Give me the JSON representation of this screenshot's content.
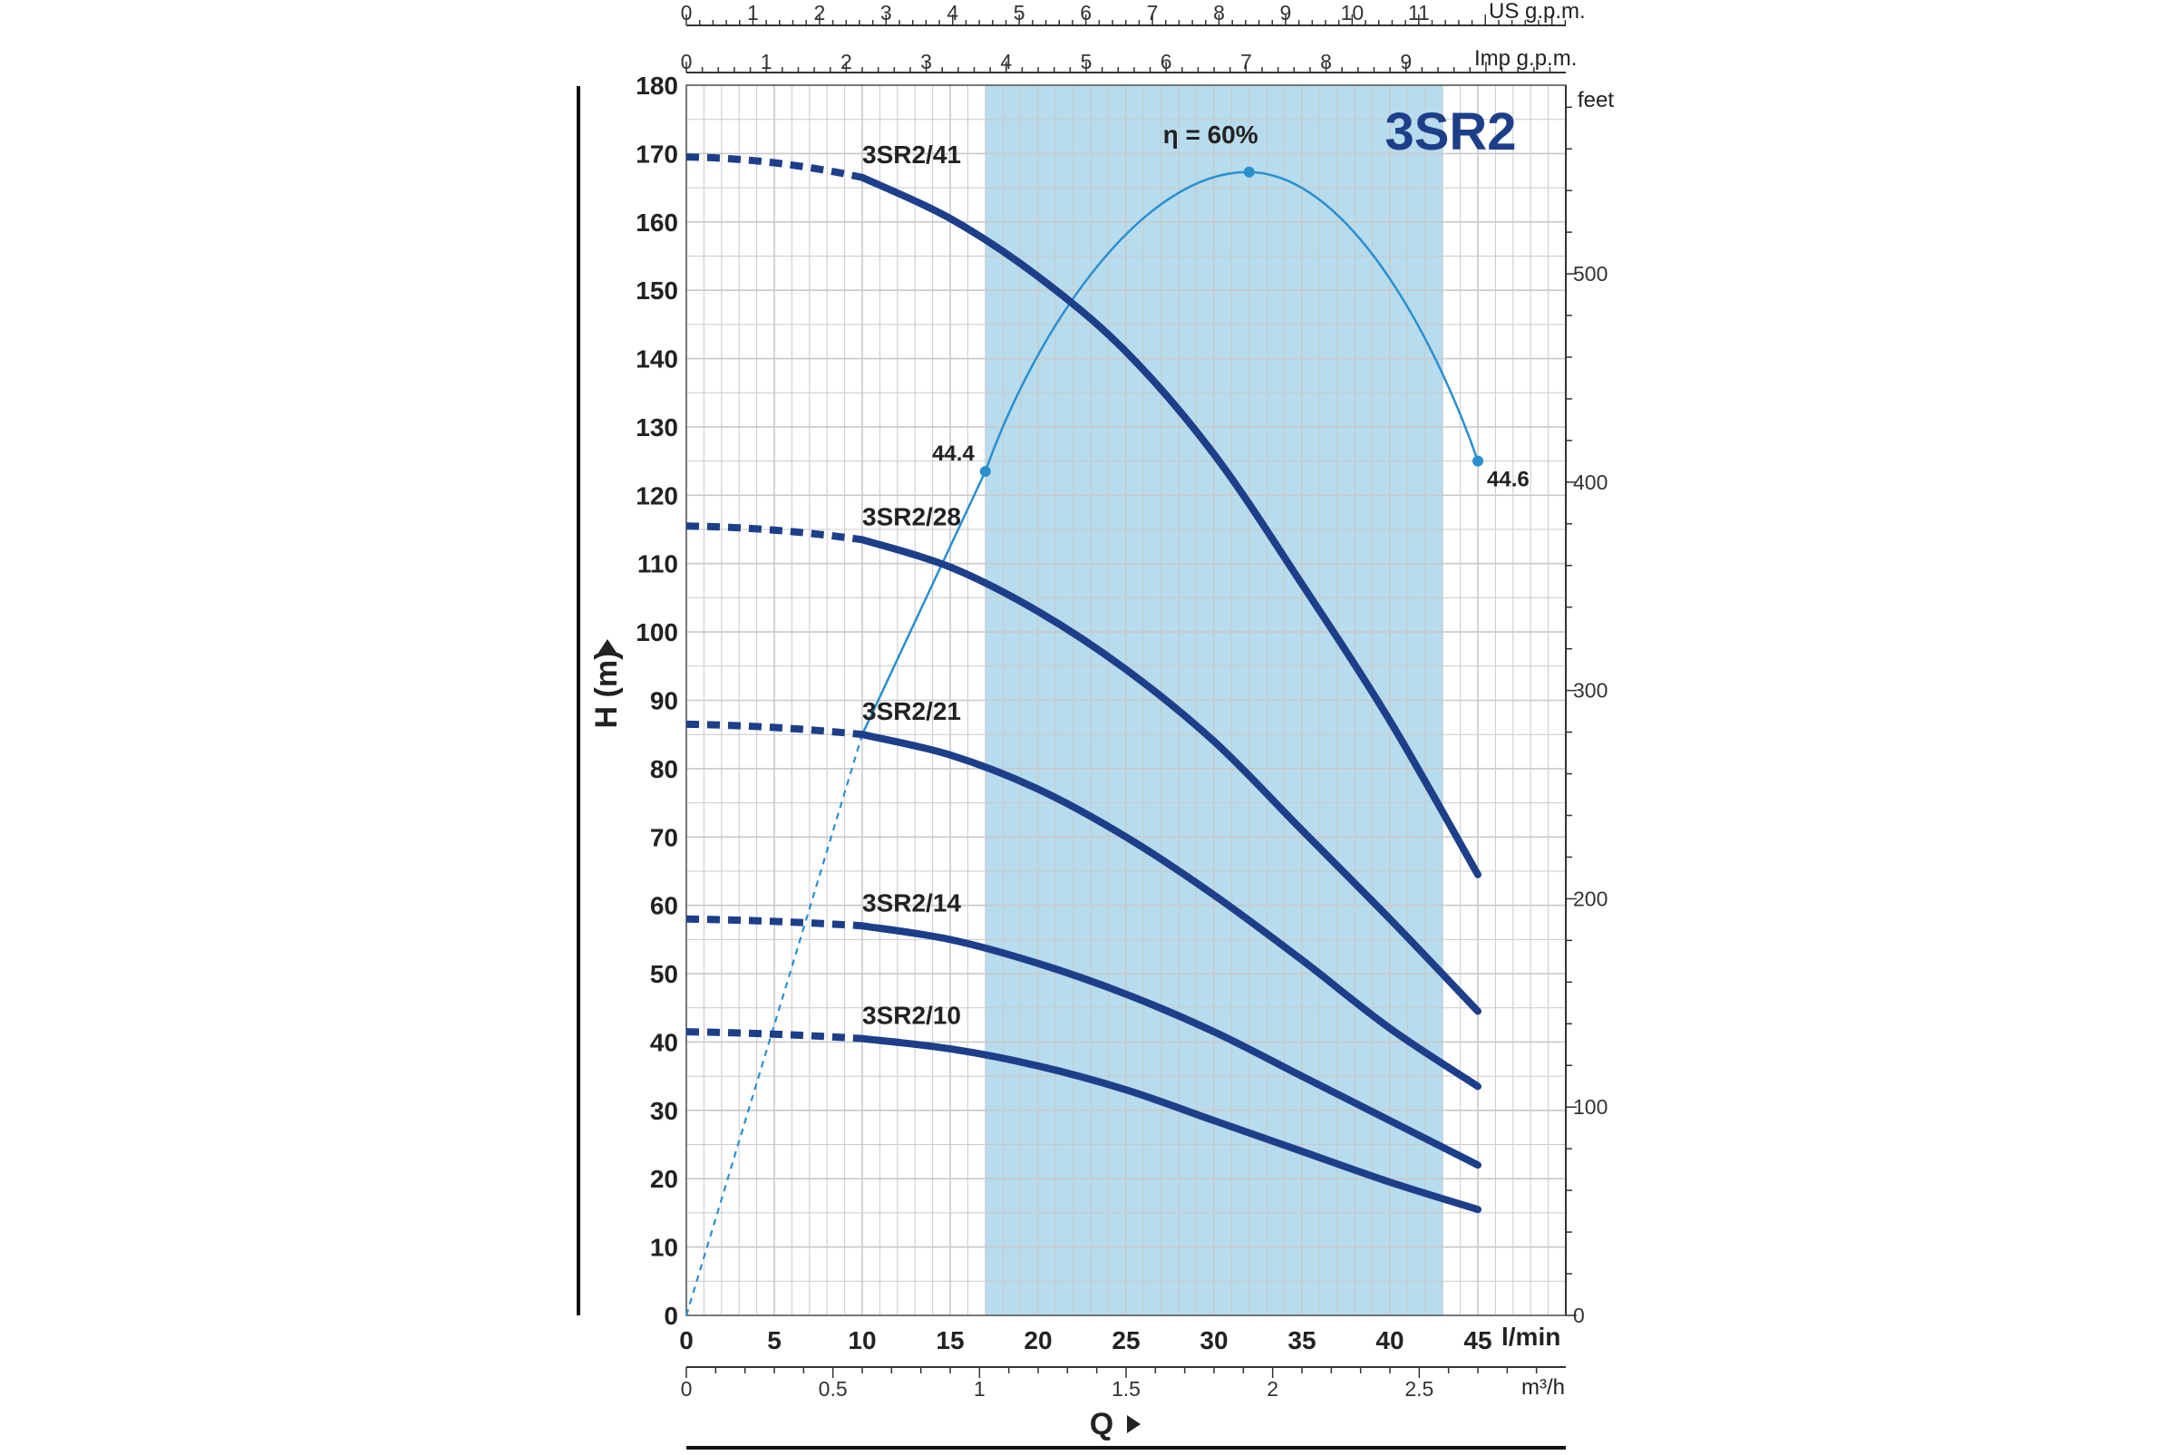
{
  "chart_data": {
    "type": "line",
    "title": "3SR2",
    "xlabel": "Q",
    "ylabel": "H  (m)",
    "y_right_unit": "feet",
    "x_unit_main": "l/min",
    "x_unit_m3h": "m³/h",
    "x_unit_imp": "Imp g.p.m.",
    "x_unit_us": "US g.p.m.",
    "xlim": [
      0,
      50
    ],
    "ylim": [
      0,
      180
    ],
    "x_ticks": [
      "0",
      "5",
      "10",
      "15",
      "20",
      "25",
      "30",
      "35",
      "40",
      "45"
    ],
    "y_ticks": [
      "0",
      "10",
      "20",
      "30",
      "40",
      "50",
      "60",
      "70",
      "80",
      "90",
      "100",
      "110",
      "120",
      "130",
      "140",
      "150",
      "160",
      "170",
      "180"
    ],
    "feet_ticks": [
      "0",
      "100",
      "200",
      "300",
      "400",
      "500"
    ],
    "m3h_ticks": [
      "0",
      "0.5",
      "1",
      "1.5",
      "2",
      "2.5"
    ],
    "imp_ticks": [
      "0",
      "1",
      "2",
      "3",
      "4",
      "5",
      "6",
      "7",
      "8",
      "9"
    ],
    "us_ticks": [
      "0",
      "1",
      "2",
      "3",
      "4",
      "5",
      "6",
      "7",
      "8",
      "9",
      "10",
      "11"
    ],
    "operating_range": [
      17,
      43
    ],
    "series": [
      {
        "name": "3SR2/41",
        "h0": 169.5,
        "start": [
          10,
          166.5
        ],
        "points": [
          [
            10,
            166.5
          ],
          [
            15,
            160.5
          ],
          [
            20,
            152
          ],
          [
            25,
            141
          ],
          [
            30,
            126
          ],
          [
            35,
            107
          ],
          [
            40,
            87
          ],
          [
            45,
            64.5
          ]
        ]
      },
      {
        "name": "3SR2/28",
        "h0": 115.5,
        "start": [
          10,
          113.5
        ],
        "points": [
          [
            10,
            113.5
          ],
          [
            15,
            109.5
          ],
          [
            20,
            103
          ],
          [
            25,
            94.5
          ],
          [
            30,
            84
          ],
          [
            35,
            71
          ],
          [
            40,
            58
          ],
          [
            45,
            44.5
          ]
        ]
      },
      {
        "name": "3SR2/21",
        "h0": 86.5,
        "start": [
          10,
          85
        ],
        "points": [
          [
            10,
            85
          ],
          [
            15,
            82
          ],
          [
            20,
            77
          ],
          [
            25,
            70
          ],
          [
            30,
            61.5
          ],
          [
            35,
            52
          ],
          [
            40,
            42
          ],
          [
            45,
            33.5
          ]
        ]
      },
      {
        "name": "3SR2/14",
        "h0": 58,
        "start": [
          10,
          57
        ],
        "points": [
          [
            10,
            57
          ],
          [
            15,
            55
          ],
          [
            20,
            51.5
          ],
          [
            25,
            47
          ],
          [
            30,
            41.5
          ],
          [
            35,
            35
          ],
          [
            40,
            28.5
          ],
          [
            45,
            22
          ]
        ]
      },
      {
        "name": "3SR2/10",
        "h0": 41.5,
        "start": [
          10,
          40.5
        ],
        "points": [
          [
            10,
            40.5
          ],
          [
            15,
            39
          ],
          [
            20,
            36.5
          ],
          [
            25,
            33
          ],
          [
            30,
            28.5
          ],
          [
            35,
            24
          ],
          [
            40,
            19.5
          ],
          [
            45,
            15.5
          ]
        ]
      }
    ],
    "efficiency": {
      "label": "η = 60%",
      "peak": [
        32,
        167.3
      ],
      "left_point": {
        "x": 17,
        "y": 123.5,
        "label": "44.4"
      },
      "right_point": {
        "x": 45,
        "y": 125,
        "label": "44.6"
      },
      "dashed_from": [
        0,
        0
      ],
      "dashed_to": [
        10,
        85
      ]
    },
    "grid": true,
    "colors": {
      "curve": "#1d3f8a",
      "efficiency": "#2a8fd0",
      "band": "#b7dced",
      "grid": "#c9c9c9"
    }
  }
}
